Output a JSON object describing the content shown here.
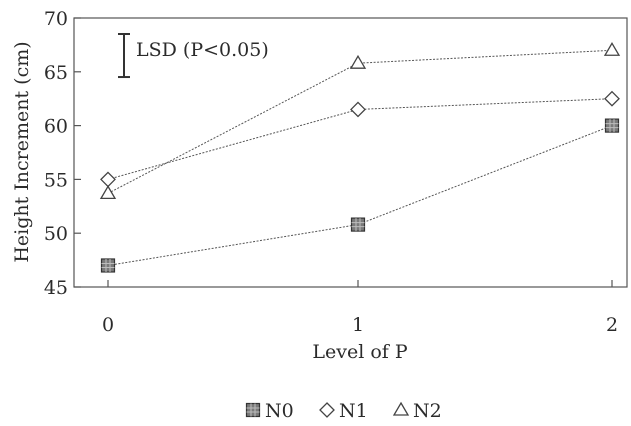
{
  "chart_data": {
    "type": "line",
    "title": "",
    "xlabel": "Level of P",
    "ylabel": "Height Increment (cm)",
    "x": [
      0,
      1,
      2
    ],
    "x_tick_labels": [
      "0",
      "1",
      "2"
    ],
    "ylim": [
      45,
      70
    ],
    "y_ticks": [
      45,
      50,
      55,
      60,
      65,
      70
    ],
    "y_tick_labels": [
      "45",
      "50",
      "55",
      "60",
      "65",
      "70"
    ],
    "grid": false,
    "legend_position": "bottom-center",
    "annotation": {
      "text": "LSD (P<0.05)",
      "bar_length": 4.0
    },
    "series": [
      {
        "name": "N0",
        "marker": "square",
        "values": [
          47.0,
          50.8,
          60.0
        ]
      },
      {
        "name": "N1",
        "marker": "diamond",
        "values": [
          55.0,
          61.5,
          62.5
        ]
      },
      {
        "name": "N2",
        "marker": "triangle",
        "values": [
          53.7,
          65.8,
          67.0
        ]
      }
    ]
  }
}
